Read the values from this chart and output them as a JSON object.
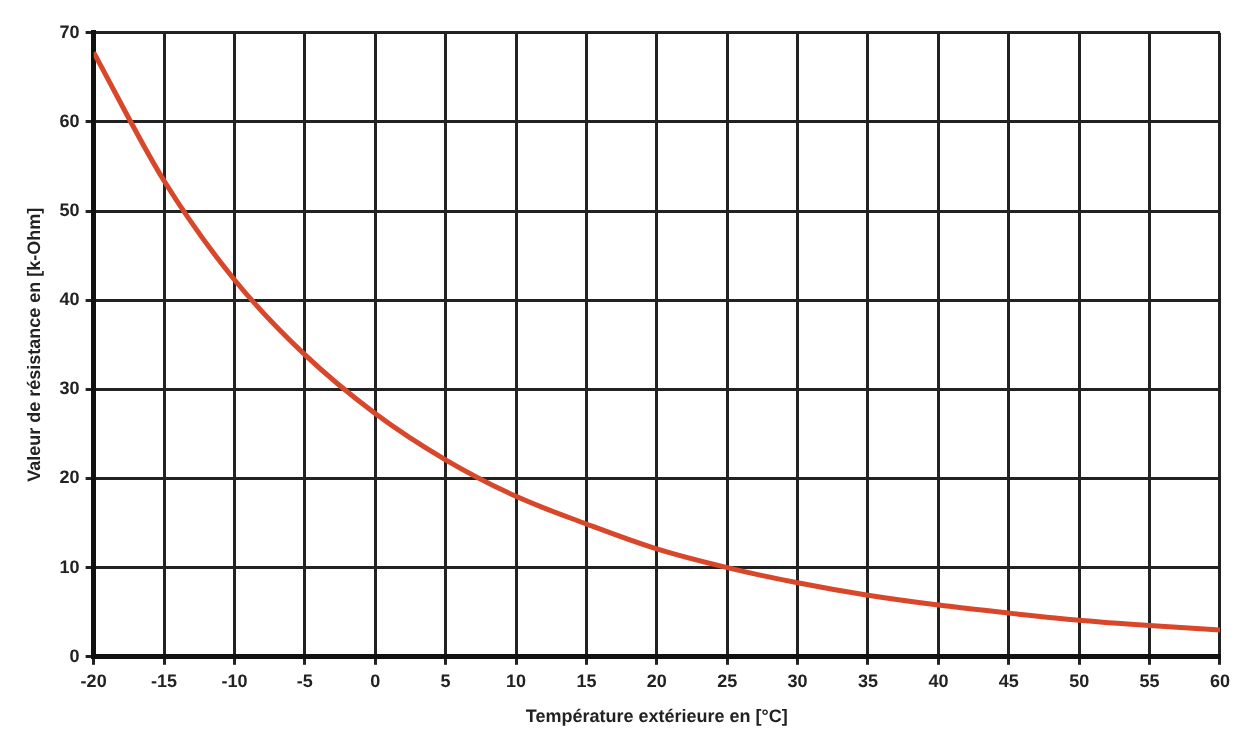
{
  "chart_data": {
    "type": "line",
    "xlabel": "Température extérieure en [°C]",
    "ylabel": "Valeur de résistance en [k-Ohm]",
    "x": [
      -20,
      -15,
      -10,
      -5,
      0,
      5,
      10,
      15,
      20,
      25,
      30,
      35,
      40,
      45,
      50,
      55,
      60
    ],
    "series": [
      {
        "color": "#d9472b",
        "values": [
          67.8,
          53.4,
          42.3,
          33.9,
          27.3,
          22.1,
          18.0,
          14.9,
          12.1,
          10.0,
          8.3,
          6.9,
          5.8,
          4.9,
          4.1,
          3.5,
          3.0
        ]
      }
    ],
    "xlim": [
      -20,
      60
    ],
    "xticks": [
      -20,
      -15,
      -10,
      -5,
      0,
      5,
      10,
      15,
      20,
      25,
      30,
      35,
      40,
      45,
      50,
      55,
      60
    ],
    "ylim": [
      0,
      70
    ],
    "yticks": [
      0,
      10,
      20,
      30,
      40,
      50,
      60,
      70
    ],
    "grid": true,
    "marker": "none",
    "line_style": "solid"
  }
}
